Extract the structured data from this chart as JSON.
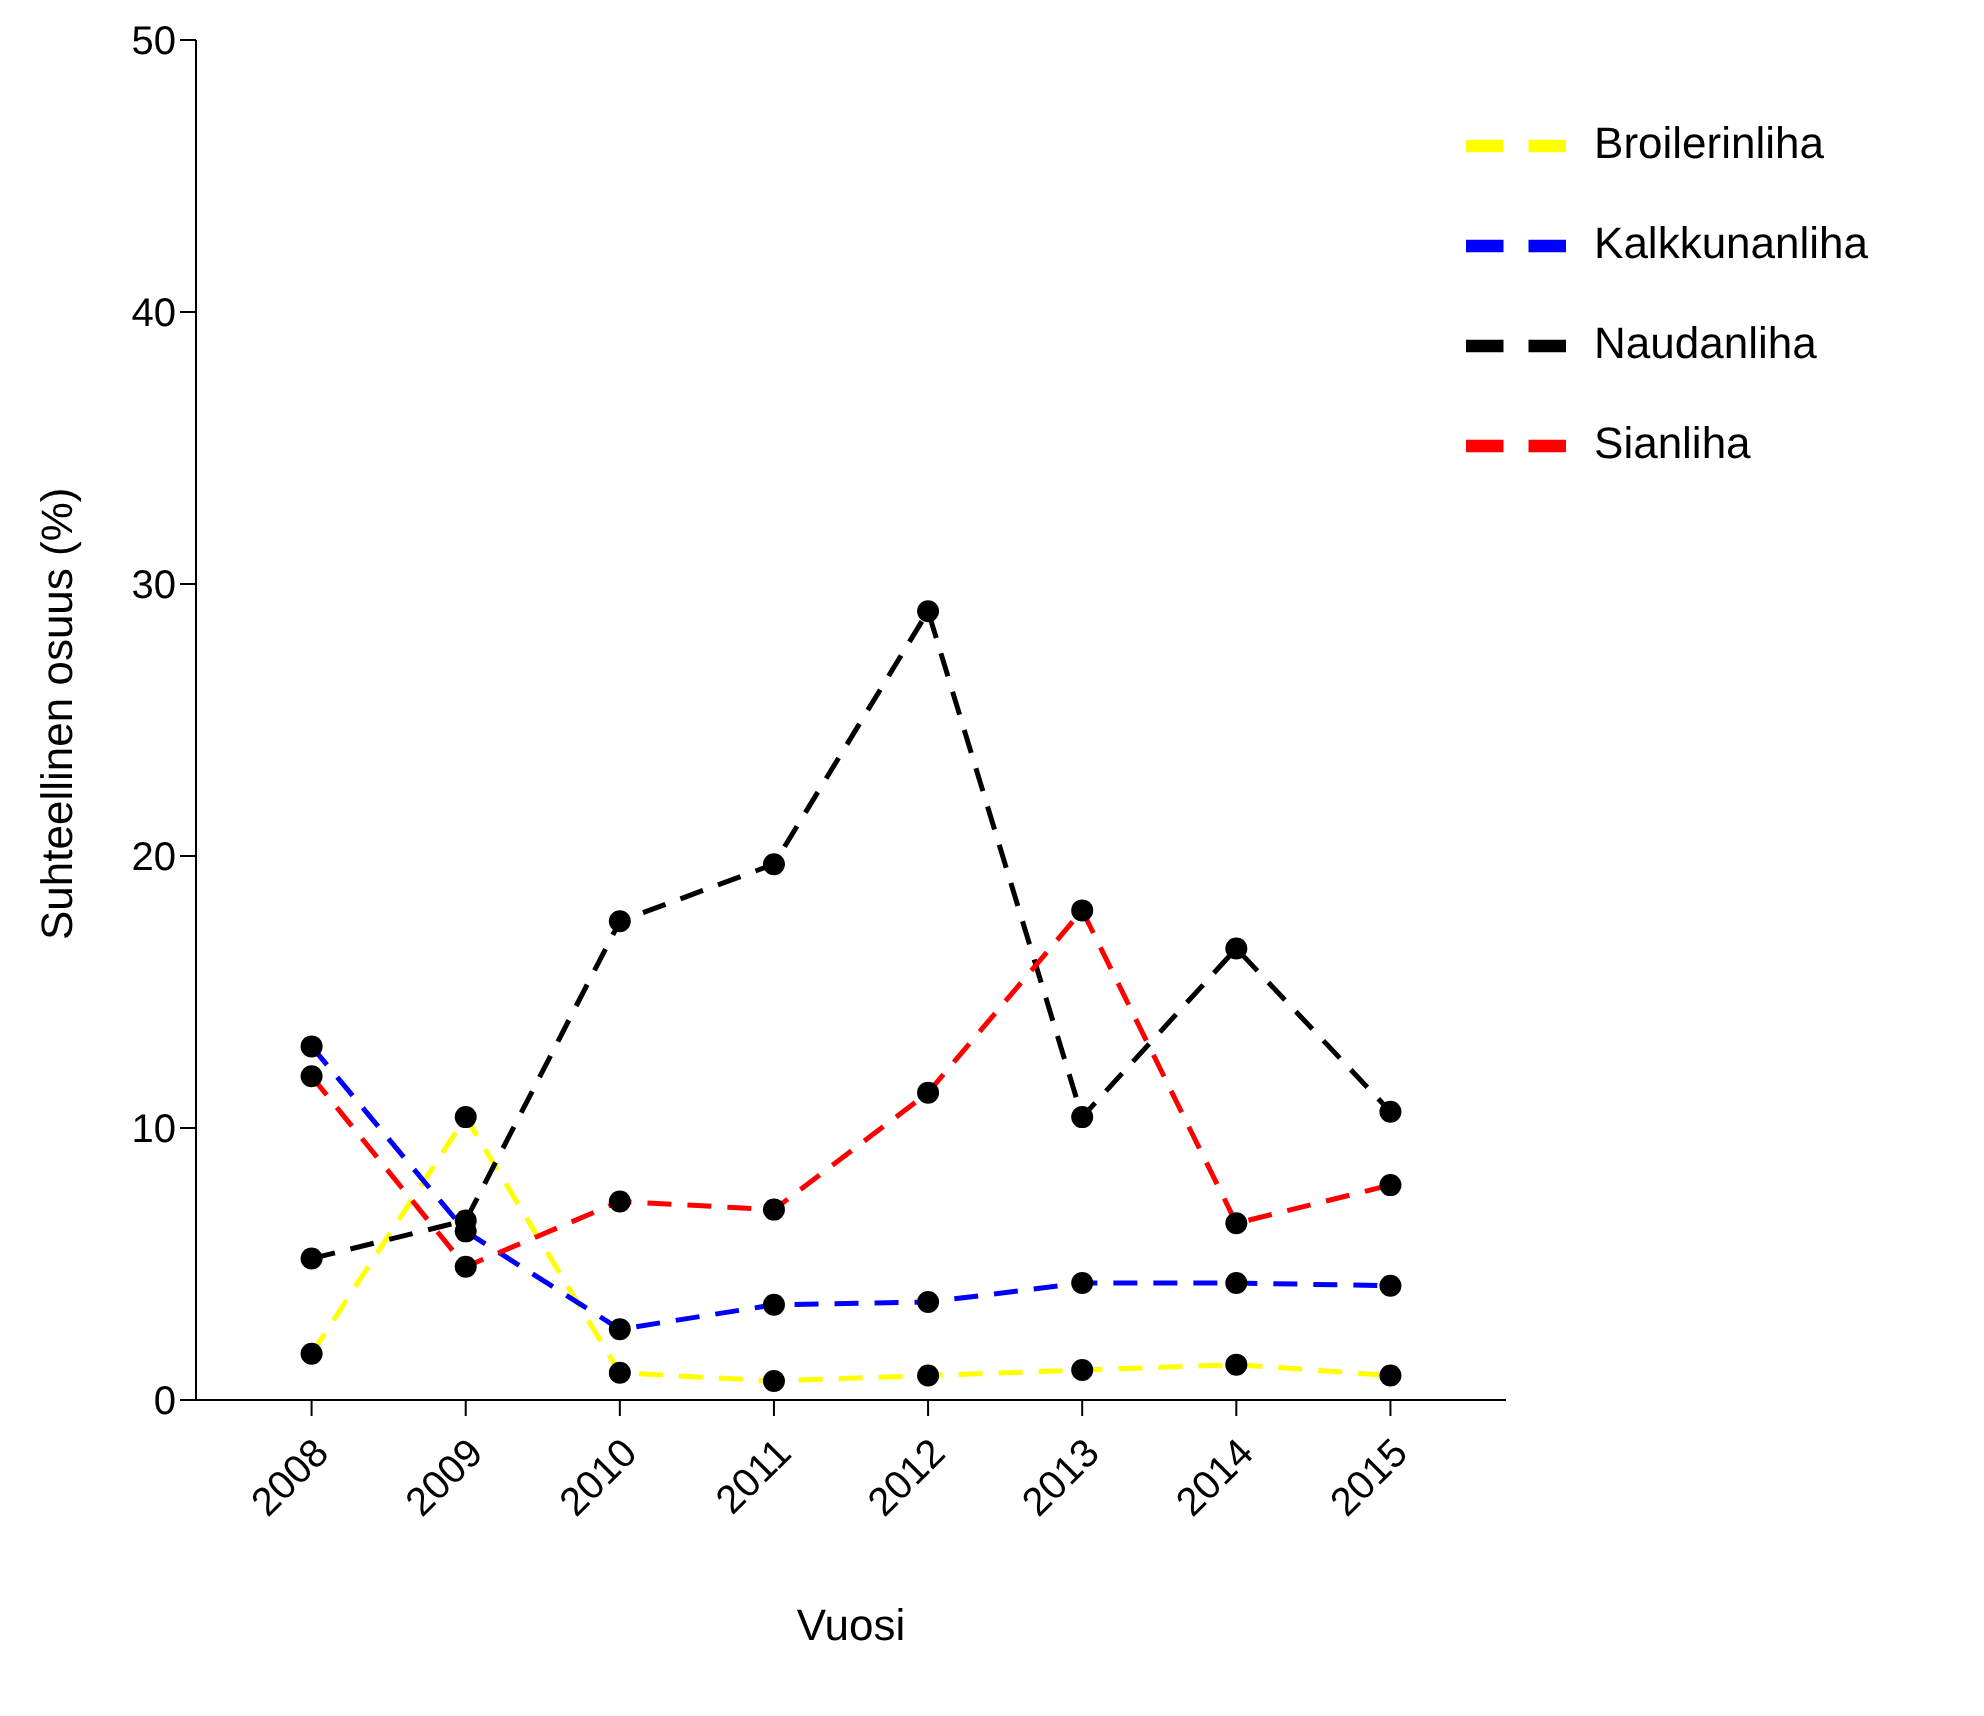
{
  "chart_data": {
    "type": "line",
    "xlabel": "Vuosi",
    "ylabel": "Suhteellinen osuus (%)",
    "categories": [
      "2008",
      "2009",
      "2010",
      "2011",
      "2012",
      "2013",
      "2014",
      "2015"
    ],
    "series": [
      {
        "name": "Broilerinliha",
        "color": "#ffff00",
        "values": [
          1.7,
          10.4,
          1.0,
          0.7,
          0.9,
          1.1,
          1.3,
          0.9
        ]
      },
      {
        "name": "Kalkkunanliha",
        "color": "#0000ff",
        "values": [
          13.0,
          6.2,
          2.6,
          3.5,
          3.6,
          4.3,
          4.3,
          4.2
        ]
      },
      {
        "name": "Naudanliha",
        "color": "#000000",
        "values": [
          5.2,
          6.6,
          17.6,
          19.7,
          29.0,
          10.4,
          16.6,
          10.6
        ]
      },
      {
        "name": "Sianliha",
        "color": "#ff0000",
        "values": [
          11.9,
          4.9,
          7.3,
          7.0,
          11.3,
          18.0,
          6.5,
          7.9
        ]
      }
    ],
    "ylim": [
      0,
      50
    ],
    "yticks": [
      0,
      10,
      20,
      30,
      40,
      50
    ],
    "grid": false,
    "legend": "top right",
    "marker": "circle",
    "line_style": "dashed"
  }
}
